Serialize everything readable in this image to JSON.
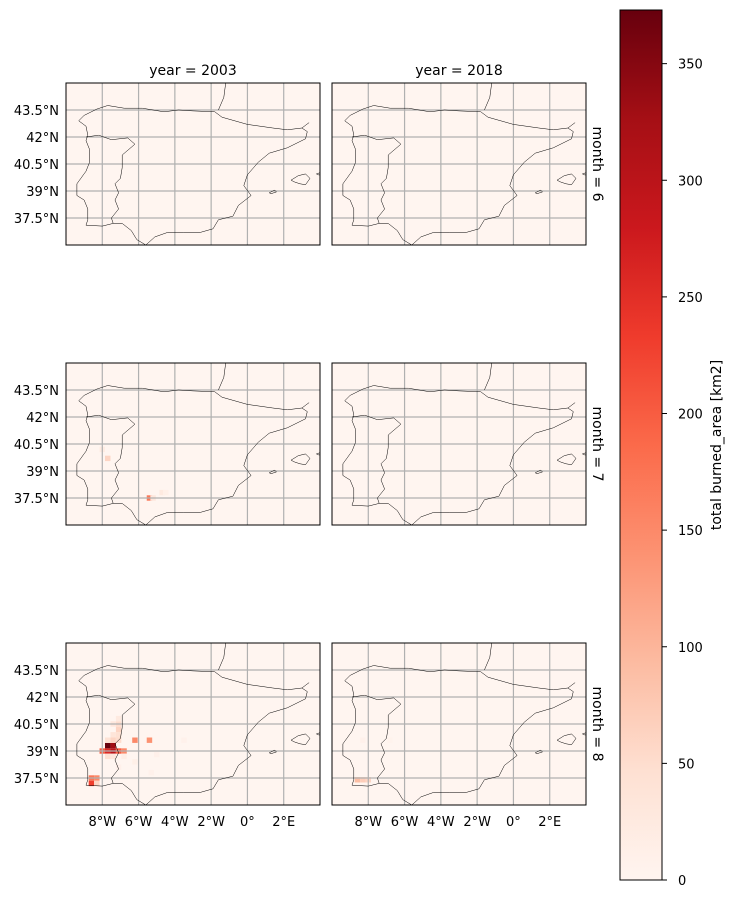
{
  "facet_grid": {
    "col_titles": [
      "year = 2003",
      "year = 2018"
    ],
    "row_titles": [
      "month = 6",
      "month = 7",
      "month = 8"
    ]
  },
  "axes": {
    "lat_ticks": [
      "43.5°N",
      "42°N",
      "40.5°N",
      "39°N",
      "37.5°N"
    ],
    "lon_ticks": [
      "8°W",
      "6°W",
      "4°W",
      "2°W",
      "0°",
      "2°E"
    ]
  },
  "colorbar": {
    "label": "total burned_area [km2]",
    "ticks": [
      "0",
      "50",
      "100",
      "150",
      "200",
      "250",
      "300",
      "350"
    ],
    "range": [
      0,
      373
    ],
    "colormap": "Reds",
    "colors": [
      "#fff5f0",
      "#fee0d2",
      "#fcbba1",
      "#fc9272",
      "#fb6a4a",
      "#ef3b2c",
      "#cb181d",
      "#a50f15",
      "#67000d"
    ]
  },
  "chart_data": {
    "type": "heatmap",
    "extent": {
      "lon": [
        -10,
        4
      ],
      "lat": [
        36,
        45
      ]
    },
    "value_label": "total burned_area [km2]",
    "panels": [
      {
        "year": 2003,
        "month": 6,
        "cells": []
      },
      {
        "year": 2018,
        "month": 6,
        "cells": []
      },
      {
        "year": 2003,
        "month": 7,
        "cells": [
          {
            "lon": -7.7,
            "lat": 39.7,
            "value": 60
          },
          {
            "lon": -8.0,
            "lat": 40.2,
            "value": 20
          },
          {
            "lon": -5.4,
            "lat": 37.5,
            "value": 170
          },
          {
            "lon": -5.2,
            "lat": 37.5,
            "value": 30
          },
          {
            "lon": -4.7,
            "lat": 37.8,
            "value": 25
          },
          {
            "lon": -4.5,
            "lat": 37.8,
            "value": 12
          },
          {
            "lon": -6.8,
            "lat": 37.0,
            "value": 5
          }
        ]
      },
      {
        "year": 2018,
        "month": 7,
        "cells": []
      },
      {
        "year": 2003,
        "month": 8,
        "cells": [
          {
            "lon": -8.0,
            "lat": 39.0,
            "value": 200
          },
          {
            "lon": -7.7,
            "lat": 39.0,
            "value": 260
          },
          {
            "lon": -7.4,
            "lat": 39.0,
            "value": 300
          },
          {
            "lon": -7.1,
            "lat": 39.0,
            "value": 200
          },
          {
            "lon": -6.8,
            "lat": 39.0,
            "value": 150
          },
          {
            "lon": -7.7,
            "lat": 39.3,
            "value": 373
          },
          {
            "lon": -7.4,
            "lat": 39.3,
            "value": 330
          },
          {
            "lon": -7.7,
            "lat": 39.6,
            "value": 40
          },
          {
            "lon": -7.4,
            "lat": 39.6,
            "value": 60
          },
          {
            "lon": -7.1,
            "lat": 39.6,
            "value": 50
          },
          {
            "lon": -7.4,
            "lat": 39.9,
            "value": 35
          },
          {
            "lon": -7.1,
            "lat": 39.9,
            "value": 45
          },
          {
            "lon": -7.1,
            "lat": 40.2,
            "value": 60
          },
          {
            "lon": -7.1,
            "lat": 40.5,
            "value": 50
          },
          {
            "lon": -7.4,
            "lat": 40.5,
            "value": 30
          },
          {
            "lon": -7.1,
            "lat": 40.8,
            "value": 25
          },
          {
            "lon": -6.2,
            "lat": 39.6,
            "value": 150
          },
          {
            "lon": -5.4,
            "lat": 39.6,
            "value": 140
          },
          {
            "lon": -7.7,
            "lat": 38.7,
            "value": 45
          },
          {
            "lon": -7.4,
            "lat": 38.7,
            "value": 30
          },
          {
            "lon": -6.8,
            "lat": 38.7,
            "value": 15
          },
          {
            "lon": -6.2,
            "lat": 38.4,
            "value": 12
          },
          {
            "lon": -7.1,
            "lat": 38.1,
            "value": 10
          },
          {
            "lon": -8.6,
            "lat": 37.5,
            "value": 170
          },
          {
            "lon": -8.3,
            "lat": 37.5,
            "value": 150
          },
          {
            "lon": -8.6,
            "lat": 37.2,
            "value": 230
          },
          {
            "lon": -8.3,
            "lat": 37.2,
            "value": 60
          },
          {
            "lon": -3.5,
            "lat": 39.6,
            "value": 8
          },
          {
            "lon": -5.0,
            "lat": 38.8,
            "value": 10
          },
          {
            "lon": -5.3,
            "lat": 37.8,
            "value": 8
          }
        ]
      },
      {
        "year": 2018,
        "month": 8,
        "cells": [
          {
            "lon": -8.6,
            "lat": 37.4,
            "value": 90
          },
          {
            "lon": -8.3,
            "lat": 37.4,
            "value": 70
          },
          {
            "lon": -8.0,
            "lat": 37.4,
            "value": 60
          },
          {
            "lon": -8.3,
            "lat": 39.6,
            "value": 8
          },
          {
            "lon": -6.8,
            "lat": 39.6,
            "value": 5
          }
        ]
      }
    ]
  }
}
